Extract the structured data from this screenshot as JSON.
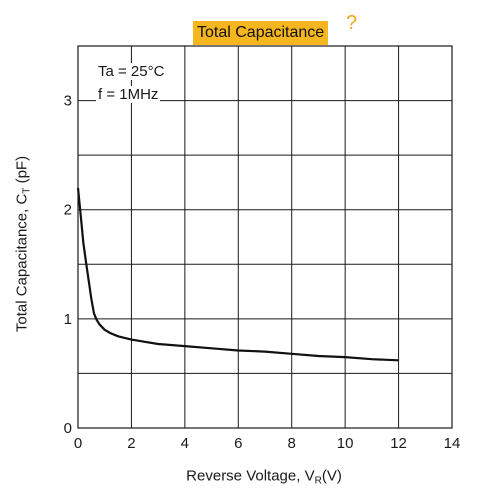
{
  "title": "Total Capacitance",
  "help_glyph": "?",
  "chart_data": {
    "type": "line",
    "xlabel": {
      "text": "Reverse Voltage, V",
      "sub": "R",
      "suffix": "(V)"
    },
    "ylabel": {
      "text": "Total Capacitance, C",
      "sub": "T",
      "suffix": " (pF)"
    },
    "xlim": [
      0,
      14
    ],
    "ylim": [
      0,
      3.5
    ],
    "x_ticks": [
      0,
      2,
      4,
      6,
      8,
      10,
      12,
      14
    ],
    "y_ticks": [
      0,
      1,
      2,
      3
    ],
    "grid": true,
    "annotations": [
      "Ta = 25°C",
      "f = 1MHz"
    ],
    "series": [
      {
        "color": "#111111",
        "x": [
          0,
          0.1,
          0.2,
          0.3,
          0.4,
          0.5,
          0.6,
          0.7,
          0.8,
          1.0,
          1.2,
          1.5,
          2.0,
          2.5,
          3.0,
          4.0,
          5.0,
          6.0,
          7.0,
          8.0,
          9.0,
          10.0,
          11.0,
          12.0
        ],
        "y": [
          2.2,
          1.95,
          1.7,
          1.52,
          1.35,
          1.18,
          1.05,
          0.99,
          0.95,
          0.9,
          0.87,
          0.84,
          0.81,
          0.79,
          0.77,
          0.75,
          0.73,
          0.71,
          0.7,
          0.68,
          0.66,
          0.65,
          0.63,
          0.62
        ]
      }
    ]
  }
}
